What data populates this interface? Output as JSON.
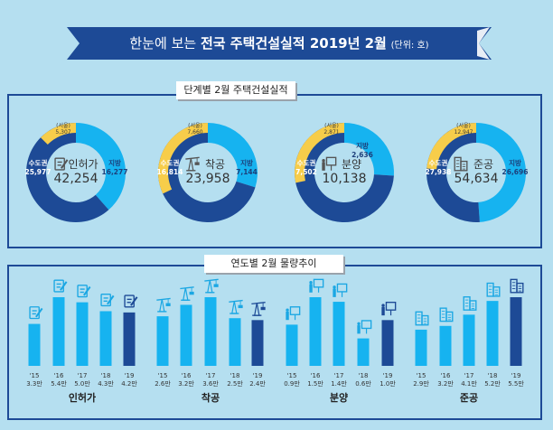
{
  "header": {
    "title_prefix": "한눈에 보는",
    "title_bold": "전국 주택건설실적 2019년 2월",
    "unit": "(단위: 호)"
  },
  "sections": {
    "stage": "단계별 2월 주택건설실적",
    "trend": "연도별 2월 물량추이"
  },
  "colors": {
    "capital": "#1d4a96",
    "local": "#16b3f0",
    "seoul": "#f7cd4a",
    "bar": "#16b3f0",
    "bar_current": "#1d4a96",
    "banner": "#1d4a96"
  },
  "chart_data": [
    {
      "type": "pie",
      "donuts": [
        {
          "name": "인허가",
          "icon": "document-pen-icon",
          "total": "42,254",
          "capital_label": "수도권",
          "capital": "25,977",
          "local_label": "지방",
          "local": "16,277",
          "seoul_label": "(서울)",
          "seoul": "5,307",
          "values": {
            "capital": 25977,
            "local": 16277,
            "seoul": 5307
          }
        },
        {
          "name": "착공",
          "icon": "crane-icon",
          "total": "23,958",
          "capital_label": "수도권",
          "capital": "16,814",
          "local_label": "지방",
          "local": "7,144",
          "seoul_label": "(서울)",
          "seoul": "7,660",
          "values": {
            "capital": 16814,
            "local": 7144,
            "seoul": 7660
          }
        },
        {
          "name": "분양",
          "icon": "presentation-icon",
          "total": "10,138",
          "capital_label": "수도권",
          "capital": "7,502",
          "local_label": "지방",
          "local": "2,636",
          "seoul_label": "(서울)",
          "seoul": "2,871",
          "values": {
            "capital": 7502,
            "local": 2636,
            "seoul": 2871
          }
        },
        {
          "name": "준공",
          "icon": "building-icon",
          "total": "54,634",
          "capital_label": "수도권",
          "capital": "27,938",
          "local_label": "지방",
          "local": "26,696",
          "seoul_label": "(서울)",
          "seoul": "12,947",
          "values": {
            "capital": 27938,
            "local": 26696,
            "seoul": 12947
          }
        }
      ]
    },
    {
      "type": "bar",
      "groups": [
        {
          "name": "인허가",
          "icon": "document-pen-icon",
          "categories": [
            "'15",
            "'16",
            "'17",
            "'18",
            "'19"
          ],
          "labels": [
            "3.3만",
            "5.4만",
            "5.0만",
            "4.3만",
            "4.2만"
          ],
          "values": [
            3.3,
            5.4,
            5.0,
            4.3,
            4.2
          ]
        },
        {
          "name": "착공",
          "icon": "crane-icon",
          "categories": [
            "'15",
            "'16",
            "'17",
            "'18",
            "'19"
          ],
          "labels": [
            "2.6만",
            "3.2만",
            "3.6만",
            "2.5만",
            "2.4만"
          ],
          "values": [
            2.6,
            3.2,
            3.6,
            2.5,
            2.4
          ]
        },
        {
          "name": "분양",
          "icon": "presentation-icon",
          "categories": [
            "'15",
            "'16",
            "'17",
            "'18",
            "'19"
          ],
          "labels": [
            "0.9만",
            "1.5만",
            "1.4만",
            "0.6만",
            "1.0만"
          ],
          "values": [
            0.9,
            1.5,
            1.4,
            0.6,
            1.0
          ]
        },
        {
          "name": "준공",
          "icon": "building-icon",
          "categories": [
            "'15",
            "'16",
            "'17",
            "'18",
            "'19"
          ],
          "labels": [
            "2.9만",
            "3.2만",
            "4.1만",
            "5.2만",
            "5.5만"
          ],
          "values": [
            2.9,
            3.2,
            4.1,
            5.2,
            5.5
          ]
        }
      ]
    }
  ]
}
